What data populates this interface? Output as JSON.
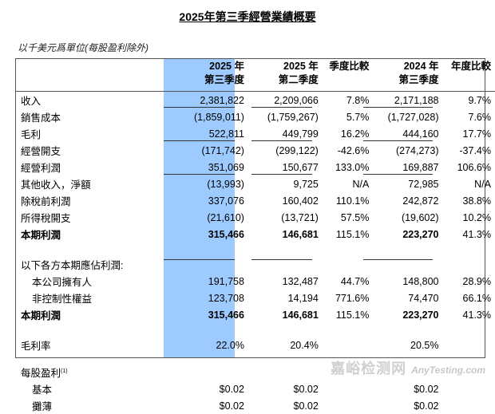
{
  "title": "2025年第三季經營業績概要",
  "unit_note": "以千美元爲單位(每股盈利除外)",
  "headers": {
    "c1a": "2025 年",
    "c1b": "第三季度",
    "c2a": "2025 年",
    "c2b": "第二季度",
    "c3": "季度比較",
    "c4a": "2024 年",
    "c4b": "第三季度",
    "c5": "年度比較"
  },
  "rows": [
    {
      "label": "收入",
      "v": [
        "2,381,822",
        "2,209,066",
        "7.8%",
        "2,171,188",
        "9.7%"
      ]
    },
    {
      "label": "銷售成本",
      "v": [
        "(1,859,011)",
        "(1,759,267)",
        "5.7%",
        "(1,727,028)",
        "7.6%"
      ]
    },
    {
      "label": "毛利",
      "v": [
        "522,811",
        "449,799",
        "16.2%",
        "444,160",
        "17.7%"
      ]
    },
    {
      "label": "經營開支",
      "v": [
        "(171,742)",
        "(299,122)",
        "-42.6%",
        "(274,273)",
        "-37.4%"
      ]
    },
    {
      "label": "經營利潤",
      "v": [
        "351,069",
        "150,677",
        "133.0%",
        "169,887",
        "106.6%"
      ]
    },
    {
      "label": "其他收入，淨額",
      "v": [
        "(13,993)",
        "9,725",
        "N/A",
        "72,985",
        "N/A"
      ]
    },
    {
      "label": "除稅前利潤",
      "v": [
        "337,076",
        "160,402",
        "110.1%",
        "242,872",
        "38.8%"
      ]
    },
    {
      "label": "所得稅開支",
      "v": [
        "(21,610)",
        "(13,721)",
        "57.5%",
        "(19,602)",
        "10.2%"
      ]
    },
    {
      "label": "本期利潤",
      "v": [
        "315,466",
        "146,681",
        "115.1%",
        "223,270",
        "41.3%"
      ]
    },
    {
      "label": "以下各方本期應佔利潤:"
    },
    {
      "label": "本公司擁有人",
      "v": [
        "191,758",
        "132,487",
        "44.7%",
        "148,800",
        "28.9%"
      ]
    },
    {
      "label": "非控制性權益",
      "v": [
        "123,708",
        "14,194",
        "771.6%",
        "74,470",
        "66.1%"
      ]
    },
    {
      "label": "本期利潤",
      "v": [
        "315,466",
        "146,681",
        "115.1%",
        "223,270",
        "41.3%"
      ]
    },
    {
      "label": "毛利率",
      "v": [
        "22.0%",
        "20.4%",
        "",
        "20.5%",
        ""
      ]
    },
    {
      "label": "每股盈利",
      "sup": "(1)"
    },
    {
      "label": "基本",
      "v": [
        "$0.02",
        "$0.02",
        "",
        "$0.02",
        ""
      ]
    },
    {
      "label": "攤薄",
      "v": [
        "$0.02",
        "$0.02",
        "",
        "$0.02",
        ""
      ]
    }
  ],
  "watermark": {
    "cn": "嘉峪检测网",
    "en": "AnyTesting.com"
  }
}
